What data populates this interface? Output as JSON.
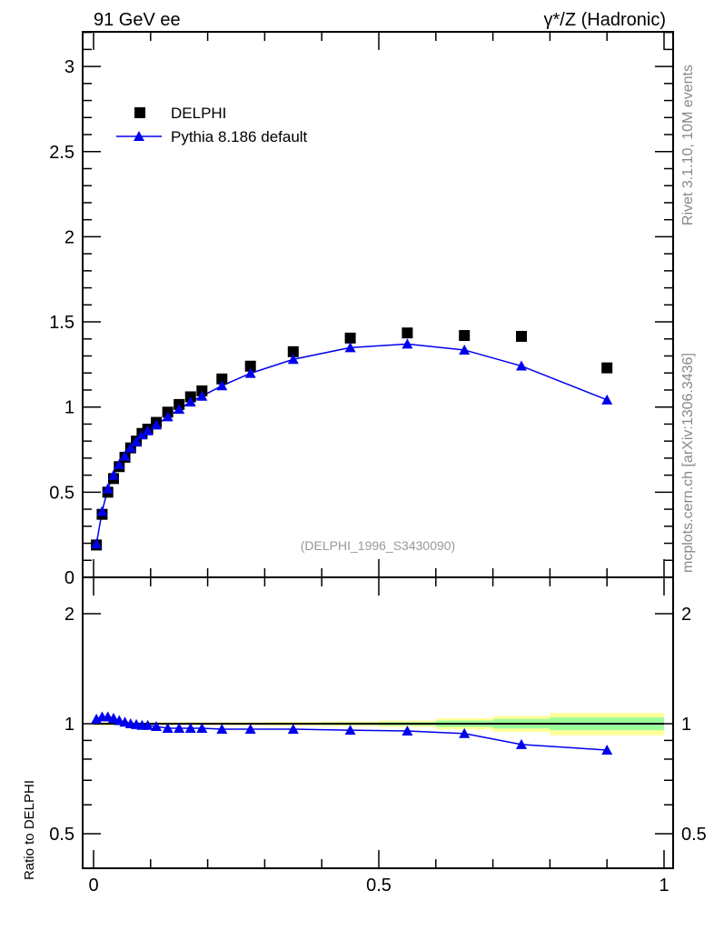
{
  "chart_data": [
    {
      "type": "scatter",
      "title_left": "91 GeV ee",
      "title_right": "γ*/Z (Hadronic)",
      "side_label_top": "Rivet 3.1.10,  10M events",
      "side_label_bottom": "mcplots.cern.ch [arXiv:1306.3436]",
      "analysis_label": "(DELPHI_1996_S3430090)",
      "xlim": [
        -0.02,
        1.02
      ],
      "ylim": [
        0,
        3.2
      ],
      "yticks": [
        "0",
        "0.5",
        "1",
        "1.5",
        "2",
        "2.5",
        "3"
      ],
      "legend_position": "top-left",
      "x": [
        0.005,
        0.015,
        0.025,
        0.035,
        0.045,
        0.055,
        0.065,
        0.075,
        0.085,
        0.095,
        0.11,
        0.13,
        0.15,
        0.17,
        0.19,
        0.225,
        0.275,
        0.35,
        0.45,
        0.55,
        0.65,
        0.75,
        0.9
      ],
      "series": [
        {
          "name": "DELPHI",
          "marker": "square",
          "color": "#000000",
          "values": [
            0.19,
            0.37,
            0.5,
            0.58,
            0.65,
            0.705,
            0.76,
            0.8,
            0.845,
            0.87,
            0.91,
            0.97,
            1.015,
            1.06,
            1.095,
            1.165,
            1.24,
            1.325,
            1.405,
            1.435,
            1.42,
            1.415,
            1.23
          ]
        },
        {
          "name": "Pythia 8.186 default",
          "marker": "triangle",
          "color": "#0000ee",
          "values": [
            0.196,
            0.387,
            0.52,
            0.6,
            0.663,
            0.712,
            0.76,
            0.796,
            0.837,
            0.861,
            0.895,
            0.943,
            0.987,
            1.03,
            1.064,
            1.125,
            1.198,
            1.28,
            1.349,
            1.37,
            1.335,
            1.241,
            1.042
          ]
        }
      ]
    },
    {
      "type": "line",
      "ylabel": "Ratio to DELPHI",
      "yscale": "log",
      "ylim": [
        0.4,
        2.5
      ],
      "yticks": [
        "0.5",
        "1",
        "2"
      ],
      "xticks": [
        "0",
        "0.5",
        "1"
      ],
      "band_bins": [
        0,
        0.1,
        0.2,
        0.3,
        0.4,
        0.5,
        0.6,
        0.7,
        0.8,
        1.0
      ],
      "band_total": [
        0.01,
        0.01,
        0.01,
        0.012,
        0.015,
        0.02,
        0.035,
        0.05,
        0.07
      ],
      "band_stat": [
        0.004,
        0.004,
        0.005,
        0.006,
        0.008,
        0.01,
        0.02,
        0.03,
        0.04
      ],
      "pythia_ratio": [
        1.03,
        1.045,
        1.045,
        1.035,
        1.02,
        1.01,
        1.0,
        0.995,
        0.99,
        0.99,
        0.983,
        0.972,
        0.972,
        0.972,
        0.972,
        0.966,
        0.966,
        0.966,
        0.96,
        0.955,
        0.94,
        0.877,
        0.847
      ],
      "colors": {
        "total": "#ffff99",
        "stat": "#99ff99",
        "ref": "#000000",
        "mc": "#0000ee"
      }
    }
  ]
}
